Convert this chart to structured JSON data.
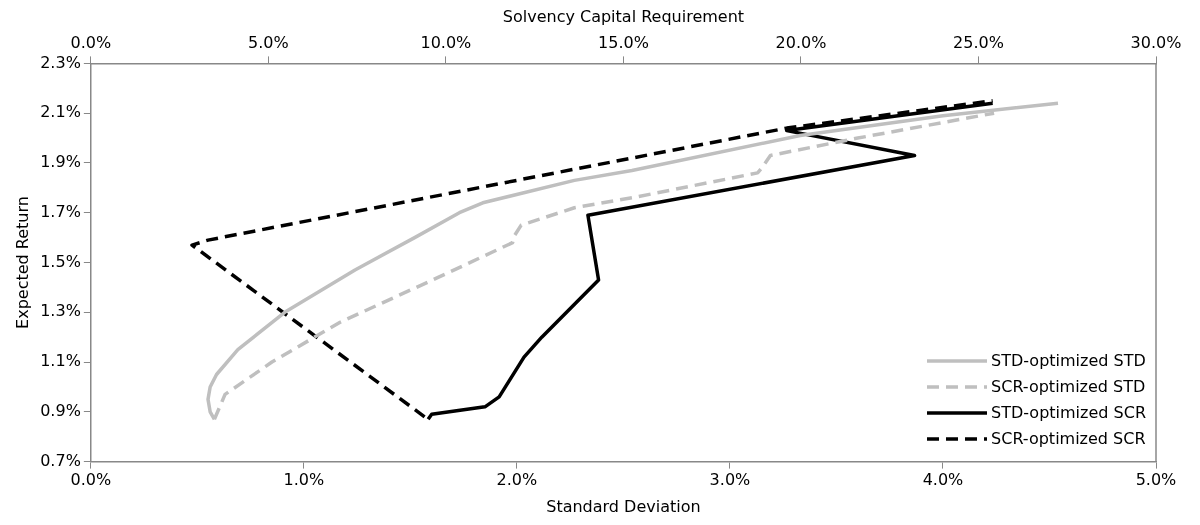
{
  "chart_data": {
    "type": "line",
    "xlabel": "Standard Deviation",
    "ylabel": "Expected Return",
    "x2label": "Solvency Capital Requirement",
    "xlim": [
      0,
      5
    ],
    "xticks": [
      {
        "value": 0,
        "label": "0.0%"
      },
      {
        "value": 1,
        "label": "1.0%"
      },
      {
        "value": 2,
        "label": "2.0%"
      },
      {
        "value": 3,
        "label": "3.0%"
      },
      {
        "value": 4,
        "label": "4.0%"
      },
      {
        "value": 5,
        "label": "5.0%"
      }
    ],
    "x2lim": [
      0,
      30
    ],
    "x2ticks": [
      {
        "value": 0,
        "label": "0.0%"
      },
      {
        "value": 5,
        "label": "5.0%"
      },
      {
        "value": 10,
        "label": "10.0%"
      },
      {
        "value": 15,
        "label": "15.0%"
      },
      {
        "value": 20,
        "label": "20.0%"
      },
      {
        "value": 25,
        "label": "25.0%"
      },
      {
        "value": 30,
        "label": "30.0%"
      }
    ],
    "ylim": [
      0.7,
      2.3
    ],
    "yticks": [
      {
        "value": 0.7,
        "label": "0.7%"
      },
      {
        "value": 0.9,
        "label": "0.9%"
      },
      {
        "value": 1.1,
        "label": "1.1%"
      },
      {
        "value": 1.3,
        "label": "1.3%"
      },
      {
        "value": 1.5,
        "label": "1.5%"
      },
      {
        "value": 1.7,
        "label": "1.7%"
      },
      {
        "value": 1.9,
        "label": "1.9%"
      },
      {
        "value": 2.1,
        "label": "2.1%"
      },
      {
        "value": 2.3,
        "label": "2.3%"
      }
    ],
    "grid": false,
    "legend": "bottom right",
    "marker": "none",
    "series": [
      {
        "name": "STD-optimized STD",
        "color": "#bfbfbf",
        "line_style": "solid",
        "x": [
          0.58,
          0.56,
          0.55,
          0.56,
          0.59,
          0.69,
          0.91,
          1.24,
          1.52,
          1.73,
          1.84,
          2.27,
          2.54,
          3.33,
          4.0,
          4.54
        ],
        "values": [
          0.87,
          0.9,
          0.95,
          1.0,
          1.05,
          1.15,
          1.3,
          1.47,
          1.6,
          1.7,
          1.74,
          1.83,
          1.87,
          2.01,
          2.09,
          2.14
        ]
      },
      {
        "name": "SCR-optimized STD",
        "color": "#bfbfbf",
        "line_style": "dashed",
        "x": [
          0.58,
          0.63,
          0.85,
          1.17,
          1.63,
          1.98,
          1.99,
          2.02,
          2.27,
          2.54,
          3.13,
          3.15,
          3.19,
          3.6,
          4.24
        ],
        "values": [
          0.87,
          0.97,
          1.1,
          1.26,
          1.44,
          1.58,
          1.61,
          1.65,
          1.72,
          1.76,
          1.86,
          1.88,
          1.93,
          2.0,
          2.1
        ]
      },
      {
        "name": "STD-optimized SCR",
        "color": "#000000",
        "line_style": "solid",
        "axis": "x2",
        "x": [
          9.5,
          9.6,
          11.1,
          11.5,
          12.2,
          12.7,
          14.3,
          14.0,
          23.2,
          19.6,
          25.4
        ],
        "values": [
          0.87,
          0.89,
          0.92,
          0.96,
          1.12,
          1.2,
          1.43,
          1.69,
          1.93,
          2.03,
          2.14
        ]
      },
      {
        "name": "SCR-optimized SCR",
        "color": "#000000",
        "line_style": "dashed",
        "axis": "x2",
        "x": [
          9.4,
          2.85,
          3.3,
          19.6,
          25.4
        ],
        "values": [
          0.88,
          1.57,
          1.59,
          2.04,
          2.15
        ]
      }
    ]
  }
}
